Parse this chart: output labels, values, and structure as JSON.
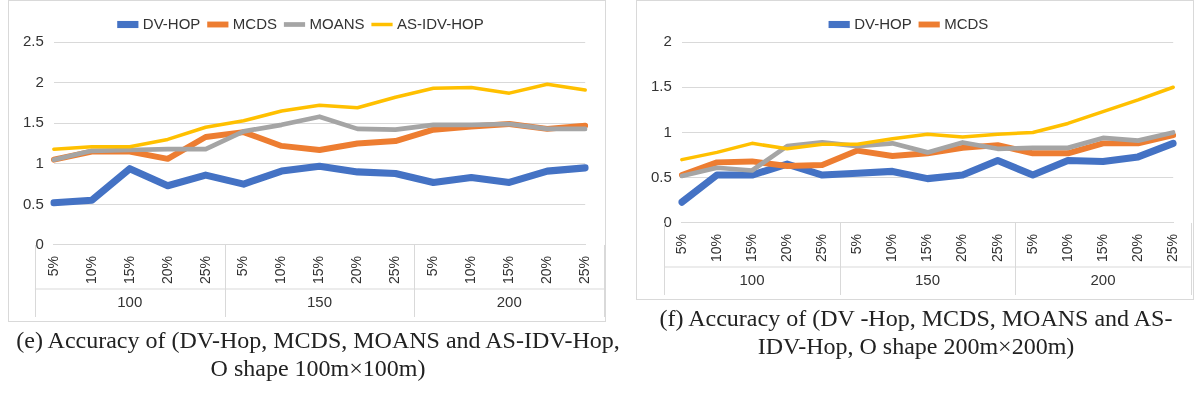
{
  "chart_data": [
    {
      "type": "line",
      "title": "(e) Accuracy of (DV-Hop, MCDS,  MOANS and AS-IDV-Hop, O shape 100m×100m)",
      "categories": [
        "5%",
        "10%",
        "15%",
        "20%",
        "25%",
        "5%",
        "10%",
        "15%",
        "20%",
        "25%",
        "5%",
        "10%",
        "15%",
        "20%",
        "25%"
      ],
      "annotations": [
        "100",
        "150",
        "200"
      ],
      "series": [
        {
          "name": "DV-HOP",
          "color": "#4472c4",
          "values": [
            0.52,
            0.55,
            0.94,
            0.73,
            0.86,
            0.75,
            0.91,
            0.97,
            0.9,
            0.88,
            0.77,
            0.83,
            0.77,
            0.91,
            0.95
          ]
        },
        {
          "name": "MCDS",
          "color": "#ed7d31",
          "values": [
            1.05,
            1.15,
            1.15,
            1.06,
            1.33,
            1.39,
            1.22,
            1.17,
            1.25,
            1.28,
            1.42,
            1.46,
            1.49,
            1.43,
            1.47
          ]
        },
        {
          "name": "MOANS",
          "color": "#a5a5a5",
          "values": [
            1.05,
            1.16,
            1.17,
            1.18,
            1.18,
            1.4,
            1.48,
            1.58,
            1.43,
            1.42,
            1.48,
            1.48,
            1.49,
            1.43,
            1.43
          ]
        },
        {
          "name": "AS-IDV-HOP",
          "color": "#ffc000",
          "values": [
            1.18,
            1.21,
            1.21,
            1.3,
            1.45,
            1.53,
            1.65,
            1.72,
            1.69,
            1.82,
            1.93,
            1.94,
            1.87,
            1.98,
            1.91
          ]
        }
      ],
      "ylim": [
        0,
        2.5
      ],
      "yticks": [
        0,
        0.5,
        1,
        1.5,
        2,
        2.5
      ],
      "grid": "y",
      "legend": "top",
      "marker": "none",
      "line_style": "solid"
    },
    {
      "type": "line",
      "title": "(f) Accuracy of (DV -Hop, MCDS, MOANS and AS-IDV-Hop, O shape 200m×200m)",
      "categories": [
        "5%",
        "10%",
        "15%",
        "20%",
        "25%",
        "5%",
        "10%",
        "15%",
        "20%",
        "25%",
        "5%",
        "10%",
        "15%",
        "20%",
        "25%"
      ],
      "annotations": [
        "100",
        "150",
        "200"
      ],
      "series": [
        {
          "name": "DV-HOP",
          "color": "#4472c4",
          "values": [
            0.23,
            0.53,
            0.53,
            0.65,
            0.53,
            0.55,
            0.57,
            0.49,
            0.53,
            0.69,
            0.53,
            0.69,
            0.68,
            0.73,
            0.88
          ]
        },
        {
          "name": "MCDS",
          "color": "#ed7d31",
          "values": [
            0.53,
            0.67,
            0.68,
            0.63,
            0.64,
            0.8,
            0.74,
            0.77,
            0.83,
            0.86,
            0.77,
            0.77,
            0.88,
            0.88,
            0.97
          ]
        },
        {
          "color": "#a5a5a5",
          "values": [
            0.52,
            0.61,
            0.58,
            0.85,
            0.89,
            0.85,
            0.88,
            0.78,
            0.89,
            0.82,
            0.83,
            0.83,
            0.94,
            0.91,
            1.0
          ]
        },
        {
          "color": "#ffc000",
          "values": [
            0.7,
            0.78,
            0.88,
            0.82,
            0.87,
            0.87,
            0.93,
            0.98,
            0.95,
            0.98,
            1.0,
            1.1,
            1.23,
            1.36,
            1.5
          ]
        }
      ],
      "ylim": [
        0,
        2
      ],
      "yticks": [
        0,
        0.5,
        1,
        1.5,
        2
      ],
      "grid": "y",
      "legend": "top",
      "marker": "none",
      "line_style": "solid"
    }
  ]
}
